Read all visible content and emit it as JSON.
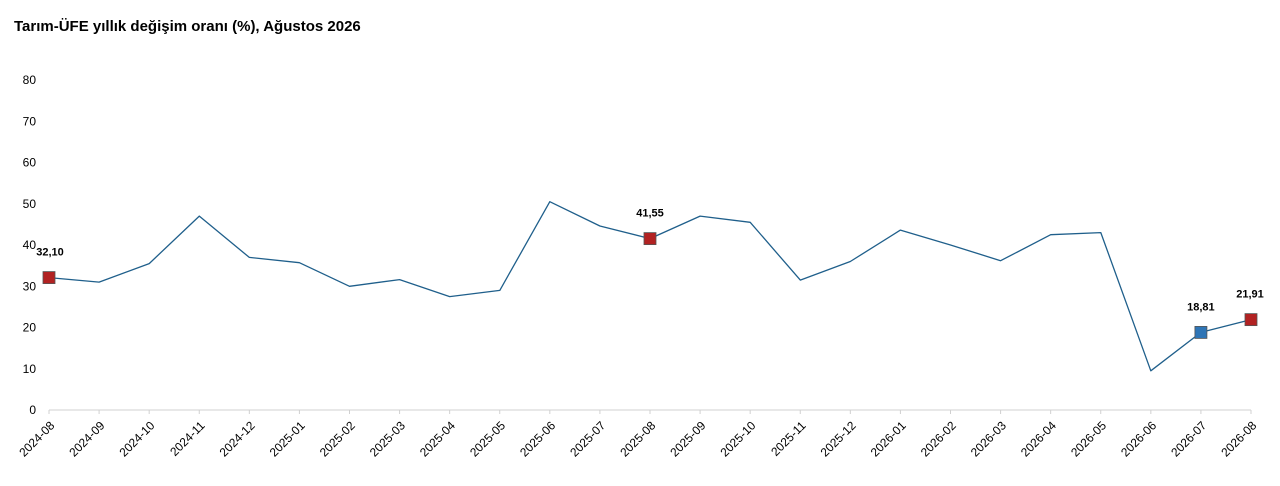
{
  "chart_data": {
    "type": "line",
    "title": "Tarım-ÜFE yıllık değişim oranı (%), Ağustos 2026",
    "xlabel": "",
    "ylabel": "",
    "ylim": [
      0,
      80
    ],
    "yticks": [
      0,
      10,
      20,
      30,
      40,
      50,
      60,
      70,
      80
    ],
    "grid": false,
    "categories": [
      "2024-08",
      "2024-09",
      "2024-10",
      "2024-11",
      "2024-12",
      "2025-01",
      "2025-02",
      "2025-03",
      "2025-04",
      "2025-05",
      "2025-06",
      "2025-07",
      "2025-08",
      "2025-09",
      "2025-10",
      "2025-11",
      "2025-12",
      "2026-01",
      "2026-02",
      "2026-03",
      "2026-04",
      "2026-05",
      "2026-06",
      "2026-07",
      "2026-08"
    ],
    "series": [
      {
        "name": "",
        "color": "#1f5f8b",
        "values": [
          32.1,
          31.0,
          35.5,
          47.0,
          37.0,
          35.7,
          30.0,
          31.6,
          27.5,
          29.0,
          50.5,
          44.6,
          41.55,
          47.0,
          45.5,
          31.5,
          36.0,
          43.6,
          40.0,
          36.2,
          42.5,
          43.0,
          9.5,
          18.81,
          21.91
        ]
      }
    ],
    "markers": [
      {
        "index": 0,
        "label": "32,10",
        "color": "#b22222"
      },
      {
        "index": 12,
        "label": "41,55",
        "color": "#b22222"
      },
      {
        "index": 23,
        "label": "18,81",
        "color": "#2e75b6"
      },
      {
        "index": 24,
        "label": "21,91",
        "color": "#b22222"
      }
    ]
  }
}
